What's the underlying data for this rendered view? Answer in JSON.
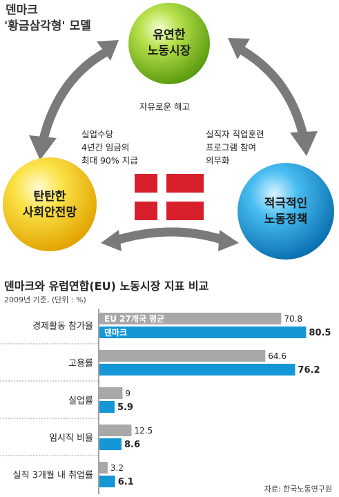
{
  "infographic": {
    "title_line1": "덴마크",
    "title_line2": "'황금삼각형' 모델",
    "circles": {
      "flexible": {
        "line1": "유연한",
        "line2": "노동시장"
      },
      "safety": {
        "line1": "탄탄한",
        "line2": "사회안전망"
      },
      "active": {
        "line1": "적극적인",
        "line2": "노동정책"
      }
    },
    "notes": {
      "firing": "자유로운 해고",
      "benefit": "실업수당\n4년간 임금의\n최대 90% 지급",
      "training": "실직자 직업훈련\n프로그램 참여\n의무화"
    },
    "colors": {
      "green": "#7cc11c",
      "yellow": "#f3cc12",
      "blue": "#1596d6",
      "arrow": "#7a7a7a",
      "flag_red": "#d8202c"
    }
  },
  "chart_data": {
    "type": "bar",
    "title": "덴마크와 유럽연합(EU) 노동시장 지표 비교",
    "subtitle": "2009년 기준, (단위 : %)",
    "categories": [
      "경제활동 참가율",
      "고용률",
      "실업률",
      "임시직 비율",
      "실직 3개월 내 취업률"
    ],
    "series": [
      {
        "name": "EU 27개국 평균",
        "color": "#a8a8a8",
        "values": [
          70.8,
          64.6,
          9,
          12.5,
          3.2
        ]
      },
      {
        "name": "덴마크",
        "color": "#1596d6",
        "values": [
          80.5,
          76.2,
          5.9,
          8.6,
          6.1
        ]
      }
    ],
    "xlim": [
      0,
      82
    ]
  },
  "source": "자료: 한국노동연구원"
}
